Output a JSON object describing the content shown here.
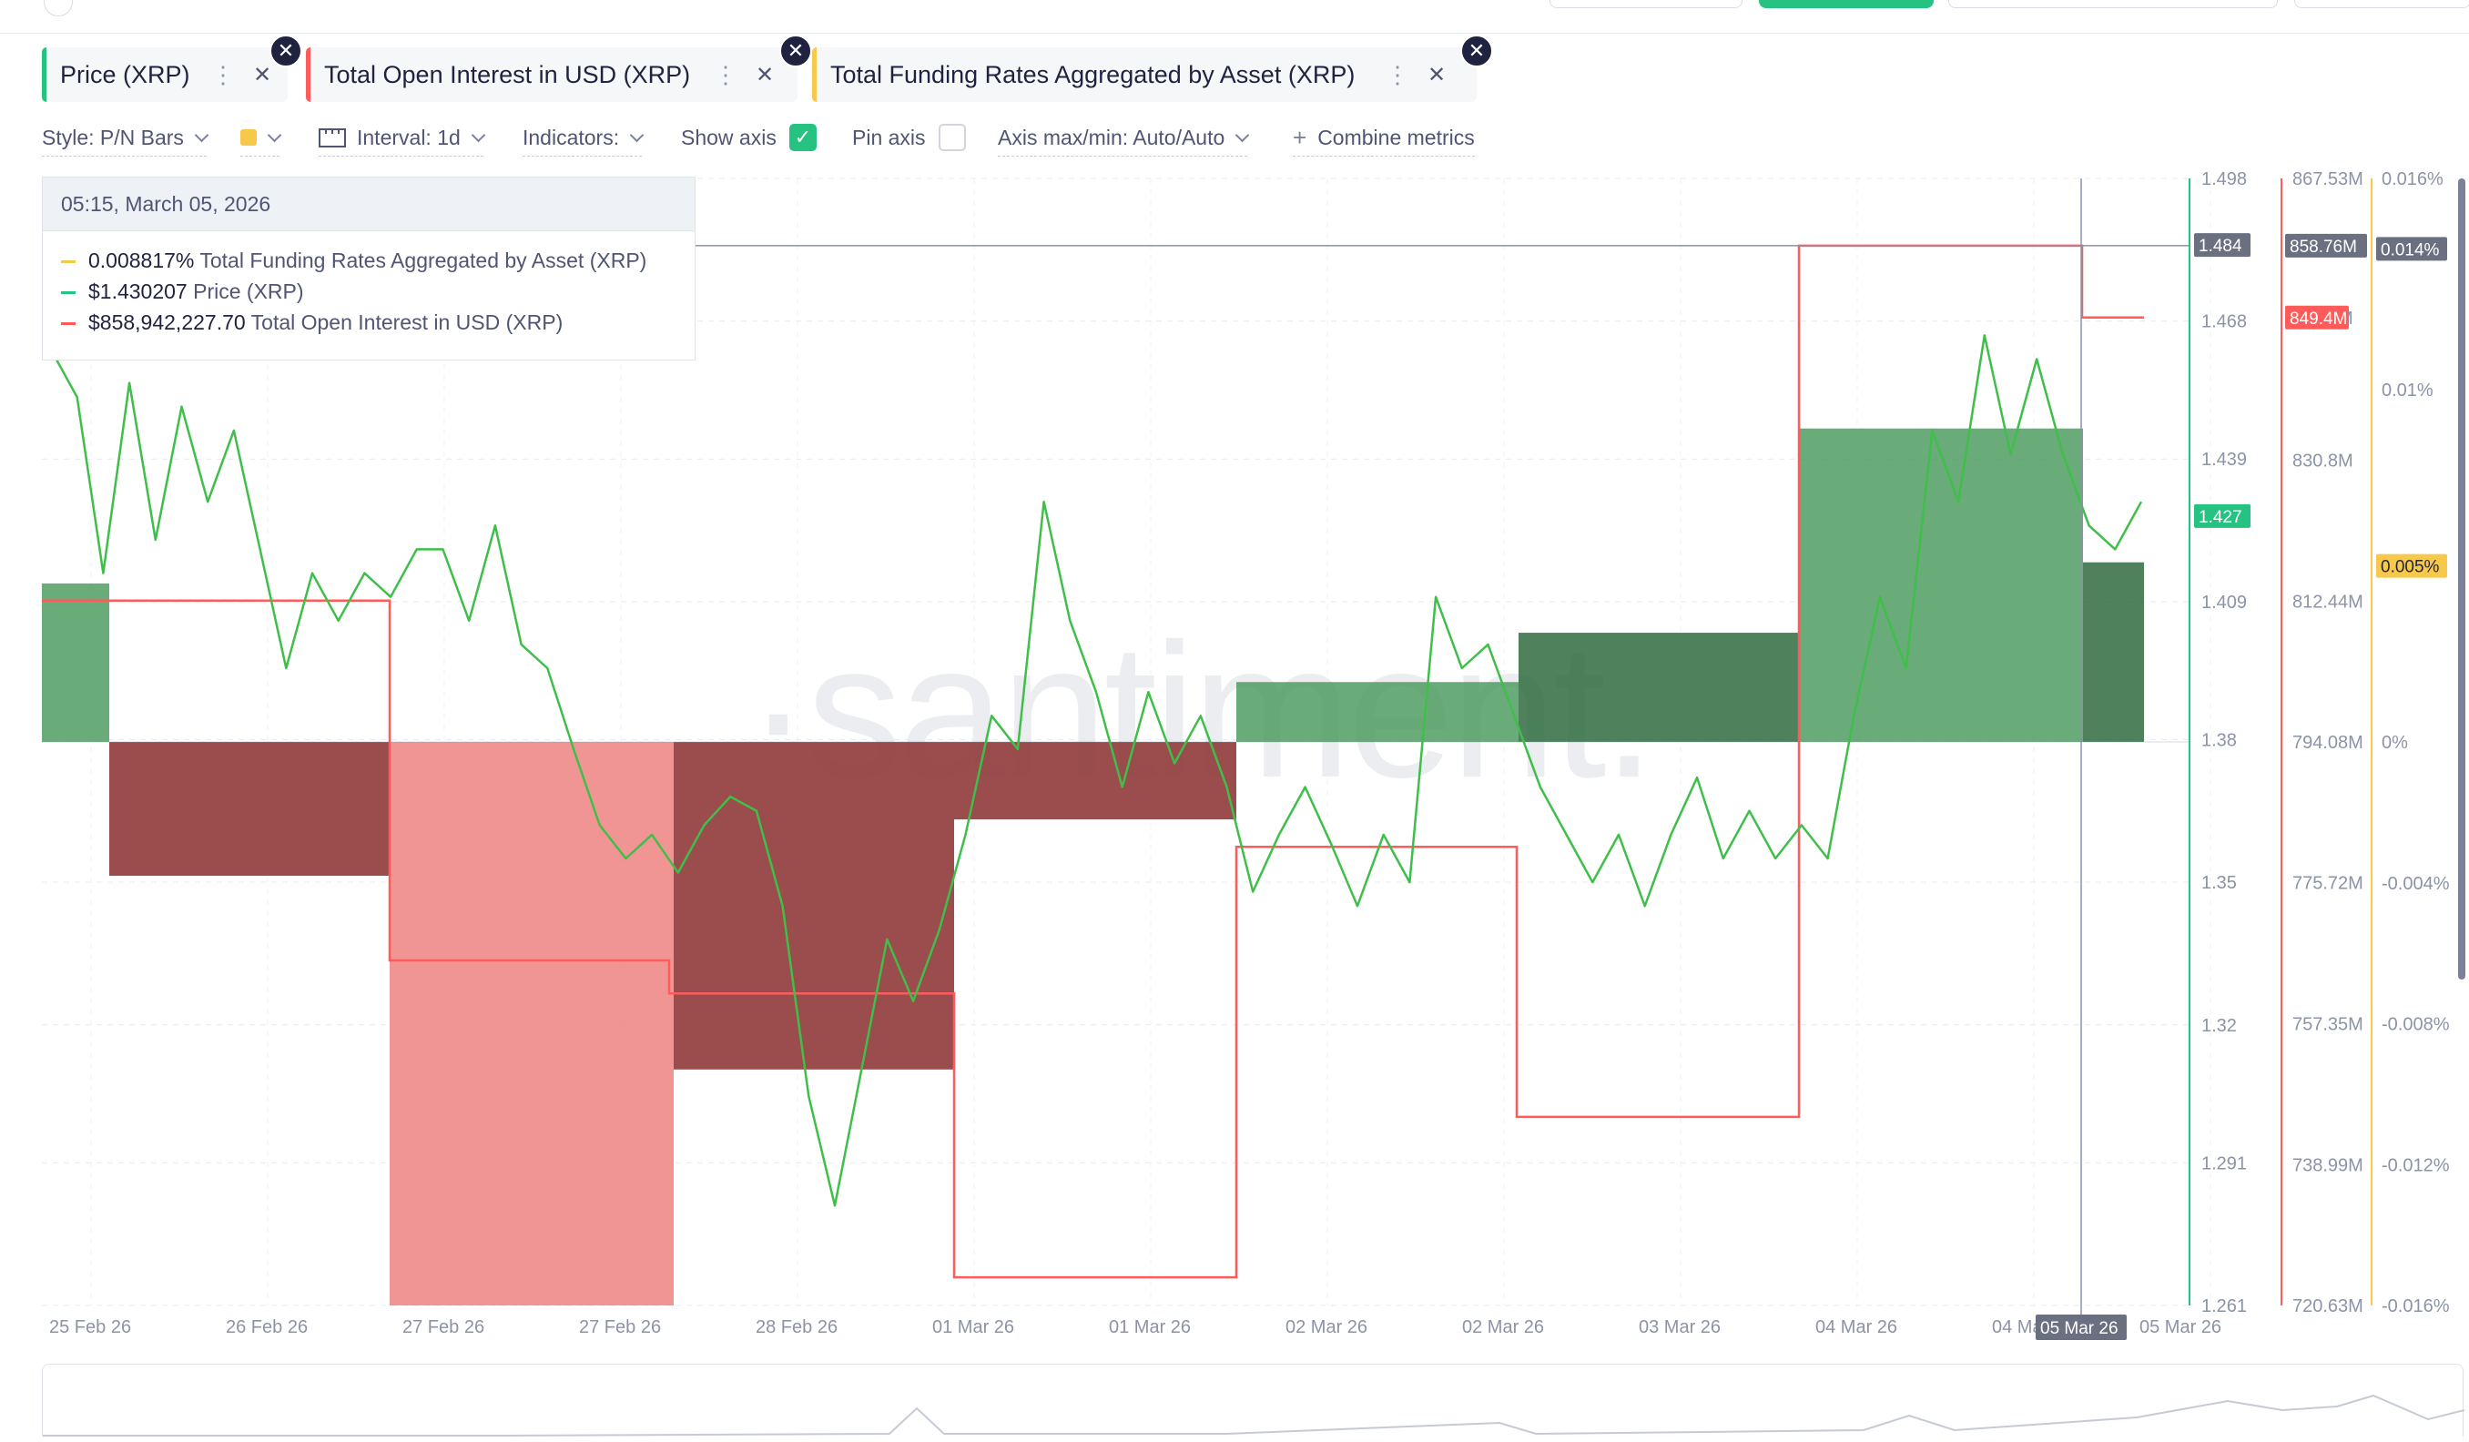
{
  "tabs": [
    {
      "label": "Price (XRP)",
      "color": "#26c281"
    },
    {
      "label": "Total Open Interest in USD (XRP)",
      "color": "#ff5b5b"
    },
    {
      "label": "Total Funding Rates Aggregated by Asset (XRP)",
      "color": "#f7c94a"
    }
  ],
  "controls": {
    "style": "Style: P/N Bars",
    "interval": "Interval: 1d",
    "indicators": "Indicators:",
    "show_axis": "Show axis",
    "pin_axis": "Pin axis",
    "axis_maxmin": "Axis max/min: Auto/Auto",
    "combine": "Combine metrics"
  },
  "tooltip": {
    "date": "05:15, March 05, 2026",
    "rows": [
      {
        "value": "0.008817%",
        "label": "Total Funding Rates Aggregated by Asset (XRP)",
        "color": "#f7c94a"
      },
      {
        "value": "$1.430207",
        "label": "Price (XRP)",
        "color": "#26c281"
      },
      {
        "value": "$858,942,227.70",
        "label": "Total Open Interest in USD (XRP)",
        "color": "#ff5b5b"
      }
    ]
  },
  "watermark": "·santiment.",
  "chart_data": {
    "type": "line",
    "x_ticks": [
      "25 Feb 26",
      "26 Feb 26",
      "27 Feb 26",
      "27 Feb 26",
      "28 Feb 26",
      "01 Mar 26",
      "01 Mar 26",
      "02 Mar 26",
      "02 Mar 26",
      "03 Mar 26",
      "04 Mar 26",
      "04 Mar 26",
      "05 Mar 26"
    ],
    "x_cursor_label": "05 Mar 26",
    "price_axis": {
      "ticks": [
        "1.498",
        "1.468",
        "1.439",
        "1.409",
        "1.38",
        "1.35",
        "1.32",
        "1.291",
        "1.261"
      ],
      "min": 1.261,
      "max": 1.498,
      "labels": [
        "1.484",
        "1.427"
      ],
      "color": "#26c281"
    },
    "oi_axis": {
      "ticks": [
        "867.53M",
        "849.4M",
        "830.8M",
        "812.44M",
        "794.08M",
        "775.72M",
        "757.35M",
        "738.99M",
        "720.63M"
      ],
      "min": 720.63,
      "max": 867.53,
      "labels": [
        "858.76M",
        "849.4M"
      ],
      "color": "#ff5b5b"
    },
    "funding_axis": {
      "ticks": [
        "0.016%",
        "0.01%",
        "0.005%",
        "0%",
        "-0.004%",
        "-0.008%",
        "-0.012%",
        "-0.016%"
      ],
      "min": -0.016,
      "max": 0.016,
      "labels": [
        "0.014%",
        "0.005%"
      ],
      "color": "#f7c94a"
    },
    "series": [
      {
        "name": "Total Funding Rates Aggregated by Asset (XRP)",
        "type": "pn_bars",
        "values": [
          0.0045,
          -0.0038,
          -0.016,
          -0.0093,
          -0.0022,
          0.0017,
          0.0031,
          0.0089,
          0.0051
        ]
      },
      {
        "name": "Total Open Interest in USD (XRP)",
        "type": "step",
        "values": [
          812.5,
          765.6,
          761.3,
          724.3,
          780.4,
          745.2,
          858.76,
          849.4
        ]
      },
      {
        "name": "Price (XRP)",
        "type": "line",
        "values": [
          1.462,
          1.452,
          1.415,
          1.455,
          1.422,
          1.45,
          1.43,
          1.445,
          1.42,
          1.395,
          1.415,
          1.405,
          1.415,
          1.41,
          1.42,
          1.42,
          1.405,
          1.425,
          1.4,
          1.395,
          1.378,
          1.362,
          1.355,
          1.36,
          1.352,
          1.362,
          1.368,
          1.365,
          1.345,
          1.305,
          1.282,
          1.31,
          1.338,
          1.325,
          1.34,
          1.36,
          1.385,
          1.378,
          1.43,
          1.405,
          1.39,
          1.37,
          1.39,
          1.375,
          1.385,
          1.37,
          1.348,
          1.36,
          1.37,
          1.358,
          1.345,
          1.36,
          1.35,
          1.41,
          1.395,
          1.4,
          1.385,
          1.37,
          1.36,
          1.35,
          1.36,
          1.345,
          1.36,
          1.372,
          1.355,
          1.365,
          1.355,
          1.362,
          1.355,
          1.385,
          1.41,
          1.395,
          1.445,
          1.43,
          1.465,
          1.44,
          1.46,
          1.44,
          1.425,
          1.42,
          1.43
        ]
      }
    ],
    "grid": true,
    "legend": "none"
  }
}
